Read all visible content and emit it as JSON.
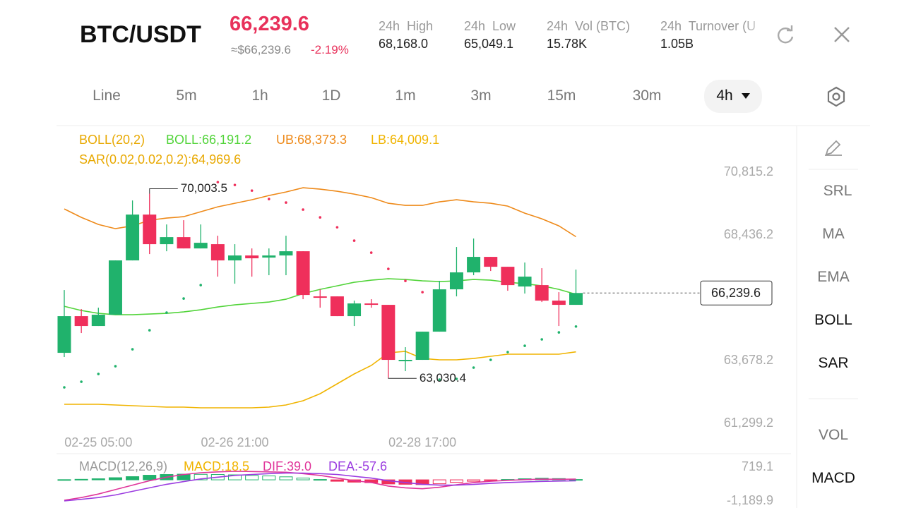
{
  "header": {
    "pair": "BTC/USDT",
    "price": "66,239.6",
    "approx_price": "≈$66,239.6",
    "change": "-2.19%",
    "stats": [
      {
        "label": "24h  High",
        "value": "68,168.0"
      },
      {
        "label": "24h  Low",
        "value": "65,049.1"
      },
      {
        "label": "24h  Vol (BTC)",
        "value": "15.78K"
      },
      {
        "label": "24h  Turnover (U",
        "value": "1.05B"
      }
    ]
  },
  "tabs": [
    "Line",
    "5m",
    "1h",
    "1D",
    "1m",
    "3m",
    "15m",
    "30m",
    "4h"
  ],
  "sidebar": [
    "SRL",
    "MA",
    "EMA",
    "BOLL",
    "SAR",
    "VOL",
    "MACD"
  ],
  "chart_data": [
    {
      "type": "candlestick",
      "title": "BOLL(20,2)",
      "x": [
        null,
        null,
        "02-25 05:00",
        null,
        null,
        null,
        null,
        null,
        null,
        null,
        "02-26 21:00",
        null,
        null,
        null,
        null,
        null,
        null,
        null,
        null,
        null,
        null,
        "02-28 17:00",
        null,
        null,
        null,
        null,
        null,
        null,
        null,
        null,
        null
      ],
      "open": [
        63972,
        65362,
        64988,
        65416,
        67474,
        69211,
        68089,
        68356,
        67928,
        68089,
        67474,
        67661,
        67581,
        67661,
        67821,
        66111,
        66111,
        65362,
        65843,
        65790,
        63652,
        63705,
        64774,
        66378,
        67020,
        67608,
        67233,
        66485,
        66538,
        65950,
        65790
      ],
      "high": [
        66351,
        65630,
        65683,
        67474,
        69746,
        70003.5,
        68837,
        68998,
        68837,
        68410,
        68089,
        67928,
        67928,
        68410,
        67821,
        66378,
        66111,
        65950,
        66004,
        65790,
        64186,
        64774,
        66699,
        67982,
        68303,
        67608,
        67233,
        67394,
        67180,
        66271,
        67126
      ],
      "low": [
        63812,
        64721,
        64988,
        65416,
        67474,
        67715,
        67821,
        67928,
        67928,
        66859,
        66592,
        66859,
        66913,
        66913,
        66004,
        65683,
        65362,
        64988,
        65683,
        63030.4,
        63277,
        63705,
        64774,
        66111,
        66913,
        67073,
        66325,
        66218,
        65897,
        64988,
        65790
      ],
      "close": [
        65362,
        64988,
        65416,
        67474,
        69211,
        68089,
        68356,
        67928,
        68142,
        67474,
        67661,
        67554,
        67661,
        67821,
        66164,
        66057,
        65362,
        65843,
        65790,
        63705,
        63705,
        64774,
        66378,
        67020,
        67608,
        67233,
        66538,
        66859,
        65950,
        65790,
        66239.6
      ],
      "up_color": "#20b26c",
      "down_color": "#ef2f5b",
      "ylim": [
        60230,
        72530
      ],
      "yticks": [
        {
          "value": 70815.2,
          "label": "70,815.2"
        },
        {
          "value": 68436.2,
          "label": "68,436.2"
        },
        {
          "value": 63678.2,
          "label": "63,678.2"
        },
        {
          "value": 61299.2,
          "label": "61,299.2"
        }
      ],
      "last_price_label": "66,239.6",
      "annotations": [
        "70,003.5",
        "63,030.4"
      ],
      "overlays": [
        {
          "label": "BOLL:66,191.2",
          "color": "#52d43a",
          "style": "line",
          "values": [
            65736,
            65576,
            65469,
            65416,
            65416,
            65442,
            65469,
            65523,
            65603,
            65710,
            65790,
            65843,
            65897,
            66004,
            66218,
            66378,
            66512,
            66645,
            66725,
            66779,
            66752,
            66699,
            66672,
            66699,
            66752,
            66725,
            66645,
            66592,
            66512,
            66378,
            66191.2
          ]
        },
        {
          "label": "UB:68,373.3",
          "color": "#ee8a1a",
          "style": "line",
          "values": [
            69425,
            69105,
            68837,
            68677,
            68784,
            68998,
            69078,
            69131,
            69318,
            69505,
            69639,
            69773,
            69933,
            70067,
            70227,
            70174,
            70093,
            69987,
            69853,
            69639,
            69559,
            69559,
            69693,
            69773,
            69693,
            69639,
            69532,
            69265,
            69051,
            68784,
            68373.3
          ]
        },
        {
          "label": "LB:64,009.1",
          "color": "#f0b400",
          "style": "line",
          "values": [
            62021,
            62021,
            62021,
            61994,
            61968,
            61941,
            61914,
            61914,
            61887,
            61887,
            61887,
            61887,
            61914,
            61994,
            62154,
            62422,
            62796,
            63170,
            63491,
            63972,
            64026,
            63758,
            63705,
            63705,
            63758,
            63839,
            63919,
            63919,
            63919,
            63919,
            64009.1
          ]
        },
        {
          "label": "SAR(0.02,0.02,0.2):64,969.6",
          "color": "#e8a800",
          "style": "dots",
          "values": [
            62662,
            62876,
            63170,
            63464,
            64106,
            64827,
            65496,
            66030,
            66538,
            70441,
            70334,
            70120,
            69800,
            69666,
            69399,
            69105,
            68730,
            68222,
            67768,
            67153,
            66699,
            66271,
            62956,
            62983,
            63411,
            63705,
            63999,
            64239,
            64480,
            64747,
            64969.6
          ]
        }
      ]
    },
    {
      "type": "macd",
      "title": "MACD(12,26,9)",
      "ylim": [
        -1189.9,
        719.1
      ],
      "yticks": [
        {
          "value": 719.1,
          "label": "719.1"
        },
        {
          "value": -1189.9,
          "label": "-1,189.9"
        }
      ],
      "up_color": "#20b26c",
      "down_color": "#ef2f5b",
      "histogram": {
        "label": "MACD:18.5",
        "color": "#f0b400",
        "values": [
          10,
          30,
          60,
          120,
          180,
          260,
          300,
          320,
          310,
          300,
          280,
          250,
          220,
          170,
          100,
          20,
          -80,
          -130,
          -160,
          -230,
          -250,
          -270,
          -220,
          -140,
          -80,
          -30,
          20,
          60,
          90,
          70,
          18.5
        ]
      },
      "series": [
        {
          "label": "DIF:39.0",
          "color": "#e0359a",
          "values": [
            -1150,
            -1000,
            -800,
            -550,
            -300,
            -50,
            150,
            300,
            400,
            450,
            480,
            470,
            450,
            430,
            350,
            250,
            100,
            -50,
            -150,
            -350,
            -450,
            -500,
            -420,
            -280,
            -150,
            -80,
            -30,
            10,
            40,
            30,
            39.0
          ]
        },
        {
          "label": "DEA:-57.6",
          "color": "#9b3ce0",
          "values": [
            -1189,
            -1100,
            -1000,
            -850,
            -650,
            -450,
            -250,
            -100,
            50,
            150,
            250,
            300,
            350,
            380,
            380,
            350,
            300,
            200,
            100,
            -50,
            -150,
            -250,
            -300,
            -300,
            -260,
            -200,
            -150,
            -120,
            -90,
            -70,
            -57.6
          ]
        }
      ]
    }
  ]
}
